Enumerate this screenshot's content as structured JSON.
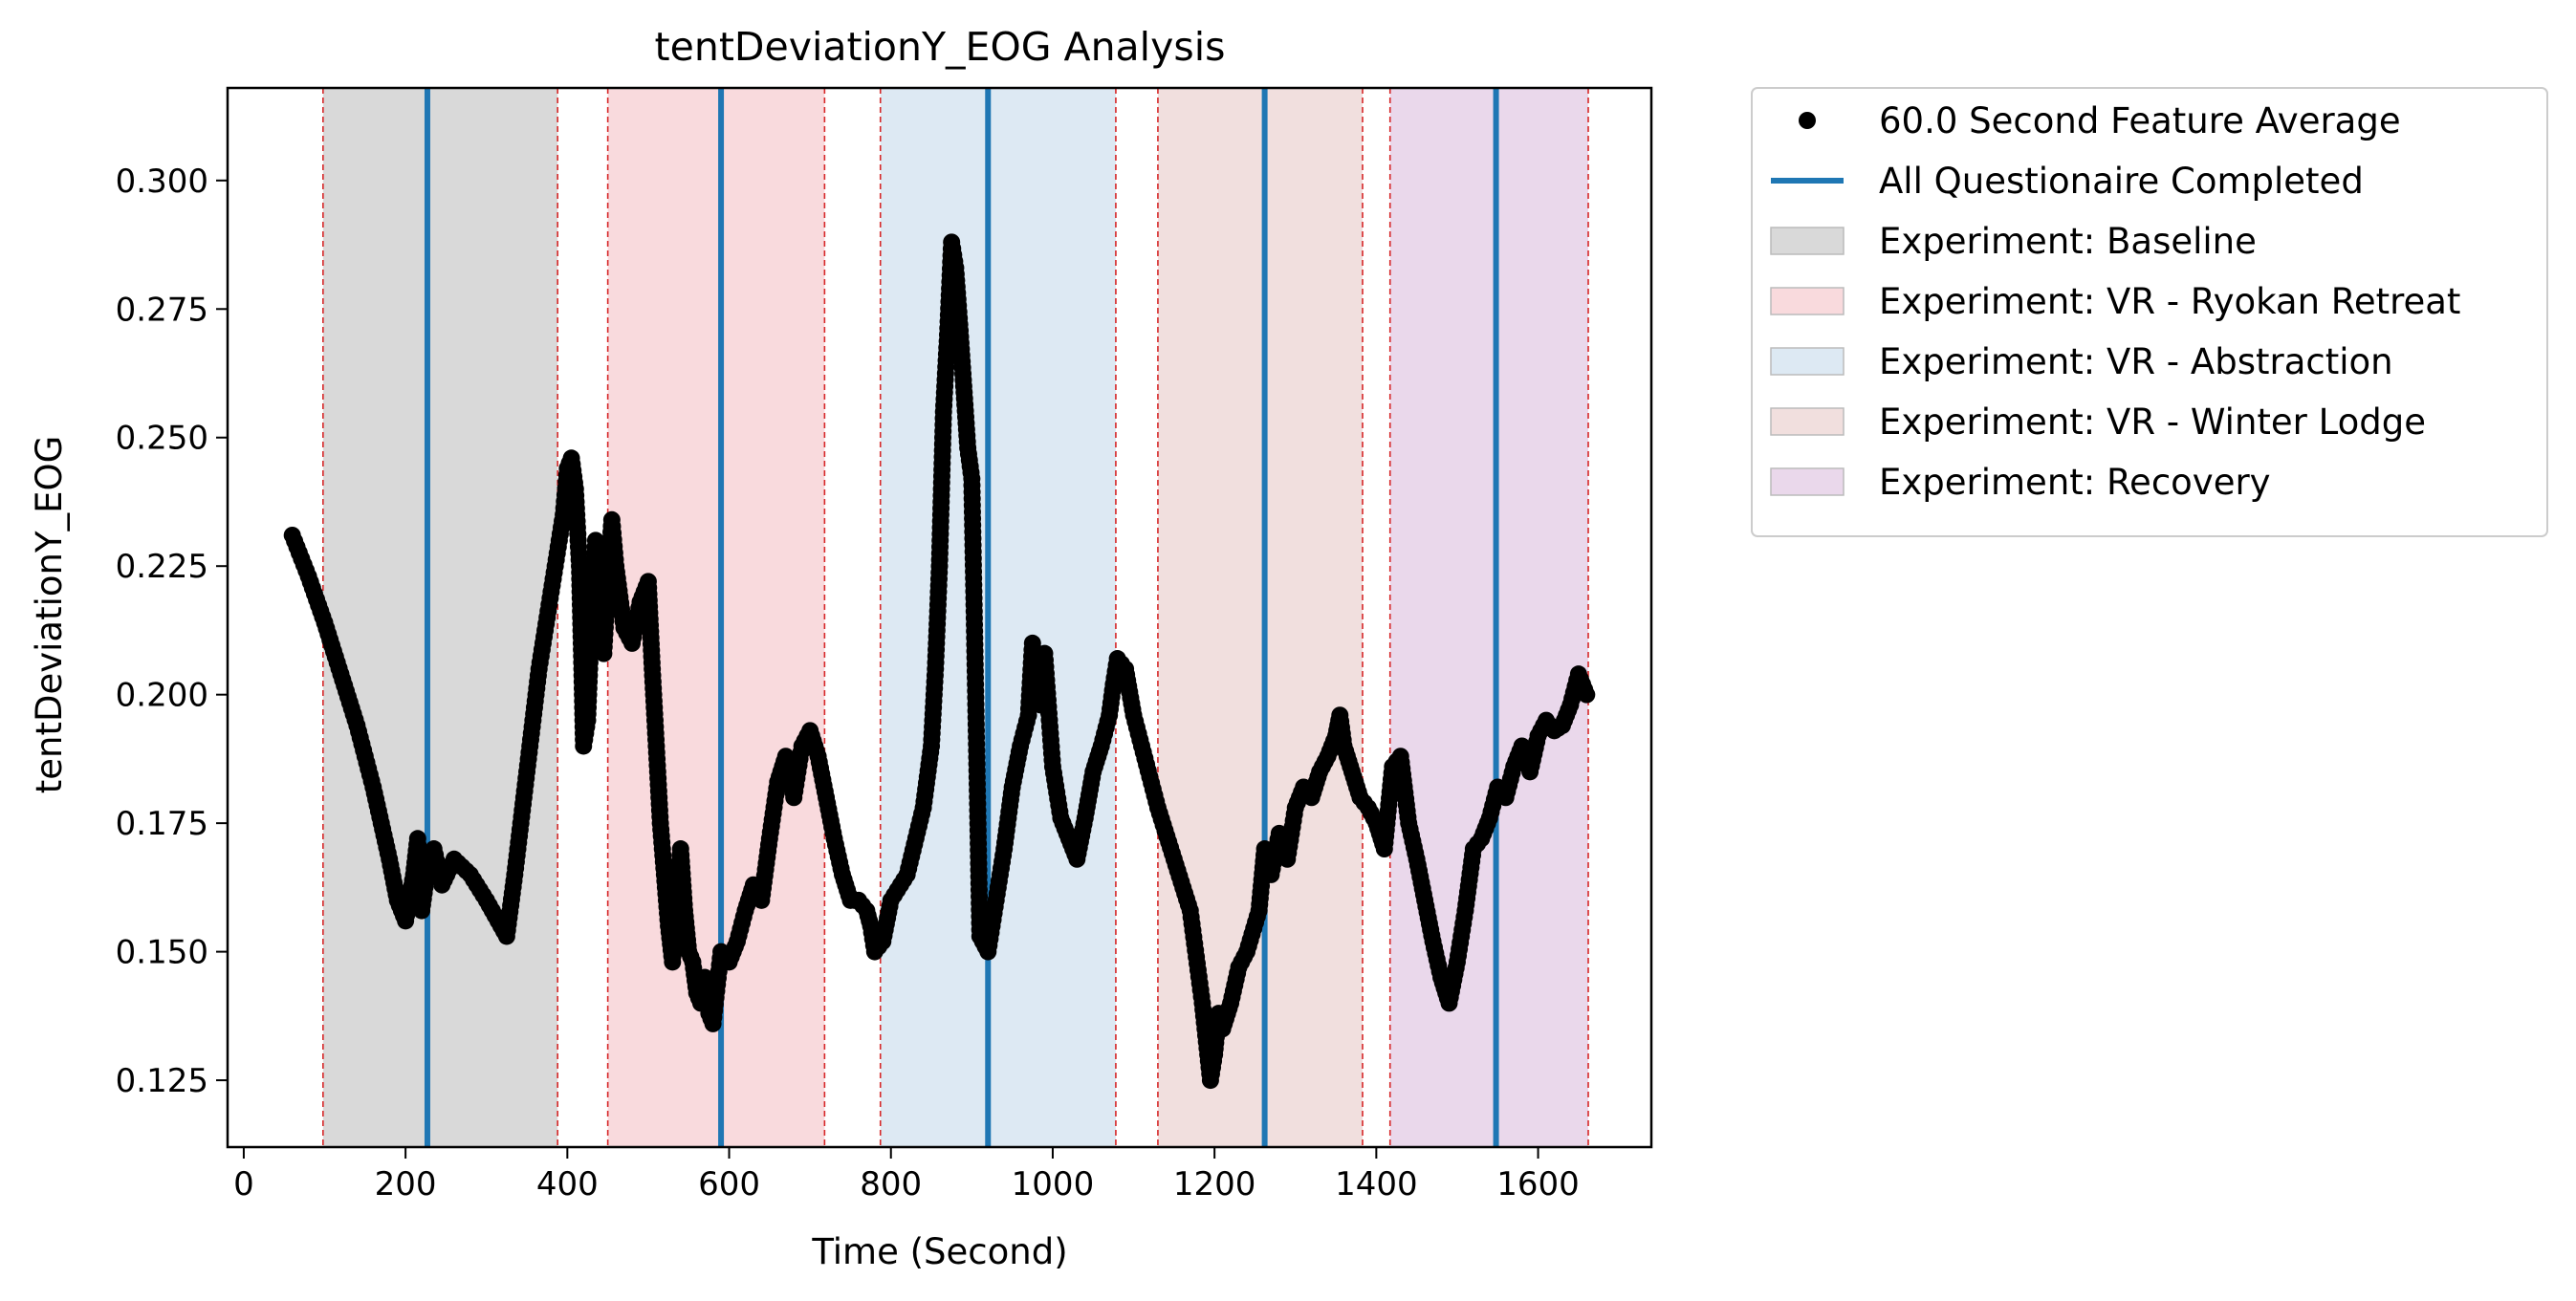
{
  "chart_data": {
    "type": "scatter",
    "title": "tentDeviationY_EOG Analysis",
    "xlabel": "Time (Second)",
    "ylabel": "tentDeviationY_EOG",
    "xlim": [
      -20,
      1740
    ],
    "ylim": [
      0.112,
      0.318
    ],
    "xticks": [
      0,
      200,
      400,
      600,
      800,
      1000,
      1200,
      1400,
      1600
    ],
    "xtick_labels": [
      "0",
      "200",
      "400",
      "600",
      "800",
      "1000",
      "1200",
      "1400",
      "1600"
    ],
    "yticks": [
      0.125,
      0.15,
      0.175,
      0.2,
      0.225,
      0.25,
      0.275,
      0.3
    ],
    "ytick_labels": [
      "0.125",
      "0.150",
      "0.175",
      "0.200",
      "0.225",
      "0.250",
      "0.275",
      "0.300"
    ],
    "legend_position": "outside-top-right",
    "grid": false,
    "phases": [
      {
        "name": "Experiment: Baseline",
        "start": 98,
        "end": 388,
        "color": "#d9d9d9"
      },
      {
        "name": "Experiment: VR - Ryokan Retreat",
        "start": 450,
        "end": 718,
        "color": "#f9dadd"
      },
      {
        "name": "Experiment: VR - Abstraction",
        "start": 787,
        "end": 1078,
        "color": "#dde9f3"
      },
      {
        "name": "Experiment: VR - Winter Lodge",
        "start": 1130,
        "end": 1383,
        "color": "#f1dfde"
      },
      {
        "name": "Experiment: Recovery",
        "start": 1417,
        "end": 1662,
        "color": "#ead8eb"
      }
    ],
    "questionnaire_lines": {
      "name": "All Questionaire Completed",
      "color": "#1f77b4",
      "x": [
        227,
        590,
        920,
        1262,
        1548
      ]
    },
    "series": [
      {
        "name": "60.0 Second Feature Average",
        "color": "#000000",
        "x": [
          60,
          80,
          100,
          120,
          140,
          160,
          180,
          190,
          200,
          210,
          215,
          220,
          227,
          235,
          245,
          260,
          280,
          300,
          325,
          335,
          350,
          365,
          380,
          395,
          400,
          405,
          410,
          415,
          418,
          420,
          425,
          430,
          435,
          440,
          445,
          450,
          455,
          460,
          470,
          480,
          490,
          500,
          505,
          510,
          515,
          520,
          525,
          530,
          535,
          540,
          545,
          550,
          555,
          560,
          565,
          570,
          575,
          580,
          590,
          600,
          610,
          620,
          630,
          640,
          650,
          660,
          670,
          680,
          690,
          700,
          710,
          720,
          730,
          740,
          750,
          760,
          770,
          775,
          780,
          790,
          800,
          820,
          840,
          850,
          855,
          860,
          865,
          870,
          875,
          880,
          885,
          890,
          895,
          900,
          910,
          920,
          930,
          940,
          950,
          960,
          970,
          975,
          980,
          985,
          990,
          1000,
          1010,
          1020,
          1030,
          1040,
          1050,
          1060,
          1070,
          1075,
          1080,
          1090,
          1100,
          1110,
          1130,
          1150,
          1170,
          1185,
          1195,
          1200,
          1205,
          1210,
          1220,
          1230,
          1240,
          1255,
          1262,
          1270,
          1280,
          1290,
          1300,
          1310,
          1320,
          1330,
          1340,
          1350,
          1355,
          1360,
          1370,
          1380,
          1390,
          1400,
          1410,
          1420,
          1430,
          1440,
          1450,
          1460,
          1470,
          1480,
          1490,
          1500,
          1510,
          1520,
          1530,
          1540,
          1550,
          1560,
          1570,
          1580,
          1590,
          1600,
          1610,
          1620,
          1630,
          1640,
          1650,
          1660
        ],
        "y": [
          0.231,
          0.223,
          0.214,
          0.204,
          0.194,
          0.182,
          0.168,
          0.16,
          0.156,
          0.165,
          0.172,
          0.158,
          0.166,
          0.17,
          0.163,
          0.168,
          0.165,
          0.16,
          0.153,
          0.165,
          0.185,
          0.205,
          0.22,
          0.235,
          0.244,
          0.246,
          0.24,
          0.225,
          0.205,
          0.19,
          0.195,
          0.215,
          0.23,
          0.222,
          0.208,
          0.222,
          0.234,
          0.225,
          0.213,
          0.21,
          0.218,
          0.222,
          0.205,
          0.19,
          0.175,
          0.165,
          0.155,
          0.148,
          0.16,
          0.17,
          0.158,
          0.15,
          0.148,
          0.142,
          0.14,
          0.145,
          0.138,
          0.136,
          0.15,
          0.148,
          0.152,
          0.158,
          0.163,
          0.16,
          0.172,
          0.183,
          0.188,
          0.18,
          0.19,
          0.193,
          0.188,
          0.18,
          0.172,
          0.165,
          0.16,
          0.16,
          0.158,
          0.155,
          0.15,
          0.152,
          0.16,
          0.165,
          0.178,
          0.19,
          0.205,
          0.225,
          0.255,
          0.27,
          0.288,
          0.283,
          0.272,
          0.26,
          0.248,
          0.242,
          0.153,
          0.15,
          0.16,
          0.17,
          0.182,
          0.19,
          0.196,
          0.21,
          0.205,
          0.198,
          0.208,
          0.186,
          0.176,
          0.172,
          0.168,
          0.176,
          0.185,
          0.19,
          0.196,
          0.202,
          0.207,
          0.205,
          0.196,
          0.19,
          0.178,
          0.168,
          0.158,
          0.14,
          0.125,
          0.13,
          0.138,
          0.135,
          0.14,
          0.147,
          0.15,
          0.158,
          0.17,
          0.165,
          0.173,
          0.168,
          0.178,
          0.182,
          0.18,
          0.185,
          0.188,
          0.192,
          0.196,
          0.19,
          0.185,
          0.18,
          0.178,
          0.175,
          0.17,
          0.186,
          0.188,
          0.175,
          0.168,
          0.16,
          0.152,
          0.145,
          0.14,
          0.148,
          0.158,
          0.17,
          0.172,
          0.176,
          0.182,
          0.18,
          0.186,
          0.19,
          0.185,
          0.192,
          0.195,
          0.193,
          0.194,
          0.198,
          0.204,
          0.2
        ]
      }
    ]
  }
}
